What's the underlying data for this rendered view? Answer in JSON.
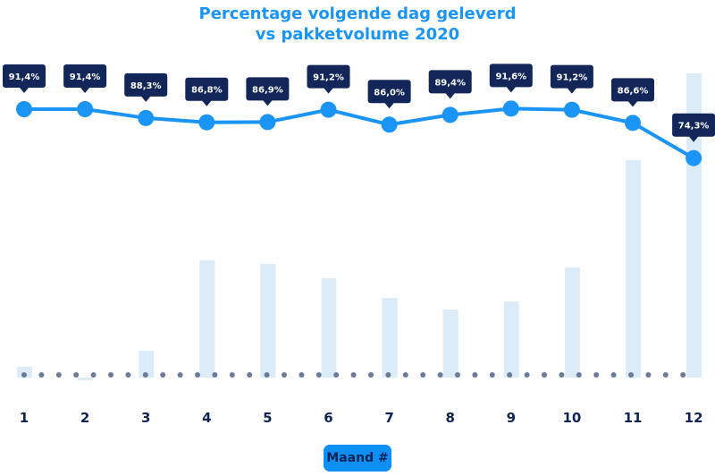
{
  "chart_data": {
    "type": "line+bar",
    "title_line1": "Percentage volgende dag geleverd",
    "title_line2": "vs pakketvolume 2020",
    "xlabel": "Maand #",
    "categories": [
      "1",
      "2",
      "3",
      "4",
      "5",
      "6",
      "7",
      "8",
      "9",
      "10",
      "11",
      "12"
    ],
    "series": [
      {
        "type": "line",
        "values": [
          91.4,
          91.4,
          88.3,
          86.8,
          86.9,
          91.2,
          86.0,
          89.4,
          91.6,
          91.2,
          86.6,
          74.3
        ],
        "labels": [
          "91,4%",
          "91,4%",
          "88,3%",
          "86,8%",
          "86,9%",
          "91,2%",
          "86,0%",
          "89,4%",
          "91,6%",
          "91,2%",
          "86,6%",
          "74,3%"
        ]
      },
      {
        "type": "bar",
        "values": [
          12,
          -3,
          30,
          131,
          127,
          111,
          89,
          76,
          85,
          123,
          243,
          340
        ]
      }
    ],
    "grid": false,
    "colors": {
      "line": "#1a94f5",
      "bar": "#dcebf8",
      "label_bg": "#12265a",
      "axis_dots": "#6b7a99",
      "tick": "#0f2455"
    }
  }
}
